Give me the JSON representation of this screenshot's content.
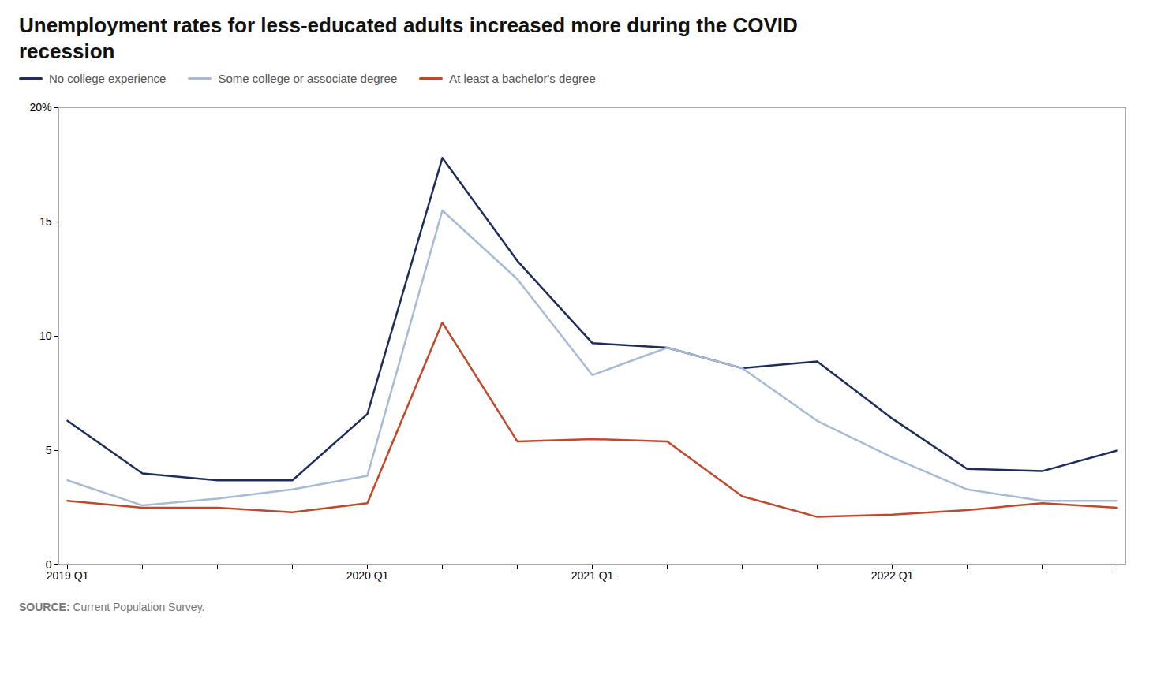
{
  "chart_data": {
    "type": "line",
    "title": "Unemployment rates for less-educated adults increased more during the COVID recession",
    "source": "SOURCE: Current Population Survey.",
    "categories": [
      "2019 Q1",
      null,
      null,
      null,
      "2020 Q1",
      null,
      null,
      "2021 Q1",
      null,
      null,
      null,
      "2022 Q1",
      null,
      null,
      null
    ],
    "series": [
      {
        "name": "No college experience",
        "color": "#1e2d5a",
        "values": [
          6.3,
          4.0,
          3.7,
          3.7,
          6.6,
          17.8,
          13.3,
          9.7,
          9.5,
          8.6,
          8.9,
          6.4,
          4.2,
          4.1,
          5.0
        ]
      },
      {
        "name": "Some college or associate degree",
        "color": "#a8bbd4",
        "values": [
          3.7,
          2.6,
          2.9,
          3.3,
          3.9,
          15.5,
          12.5,
          8.3,
          9.5,
          8.6,
          6.3,
          4.7,
          3.3,
          2.8,
          2.8
        ]
      },
      {
        "name": "At least a bachelor's degree",
        "color": "#c0492b",
        "values": [
          2.8,
          2.5,
          2.5,
          2.3,
          2.7,
          10.6,
          5.4,
          5.5,
          5.4,
          3.0,
          2.1,
          2.2,
          2.4,
          2.7,
          2.5
        ]
      }
    ],
    "ylim": [
      0,
      20
    ],
    "yticks": [
      0,
      5,
      10,
      15,
      {
        "value": 20,
        "label": "20%"
      }
    ],
    "grid": false,
    "legend": "top-left"
  }
}
